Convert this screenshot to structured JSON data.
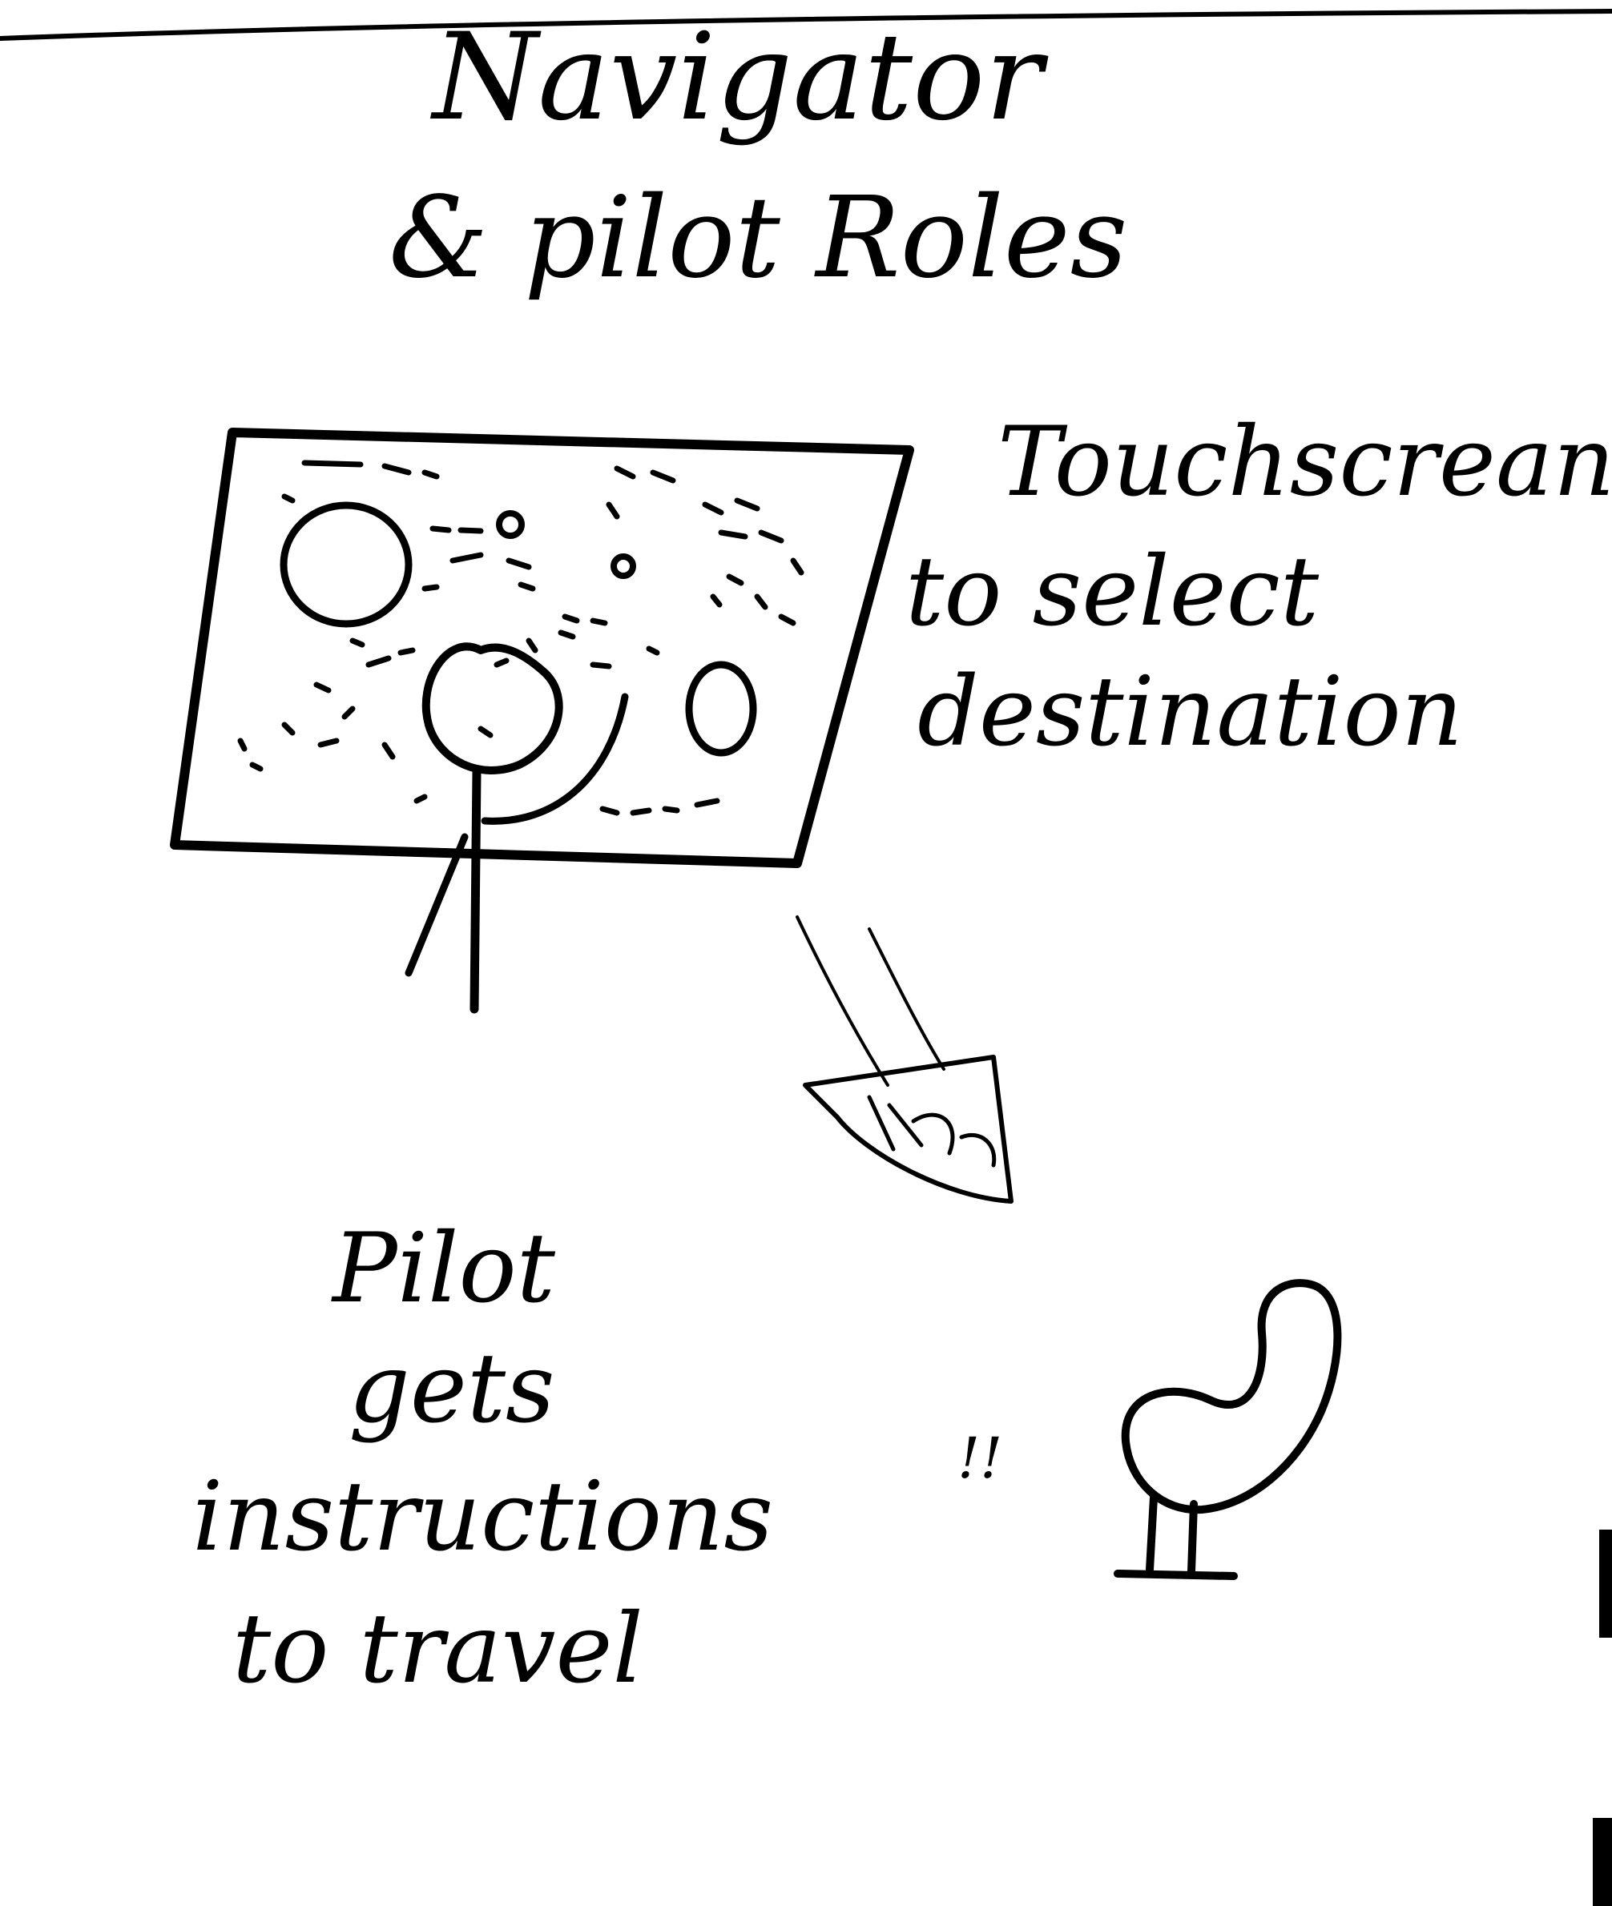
{
  "title": {
    "line1": "Navigator",
    "line2": "& pilot Roles"
  },
  "touchscreen_note": {
    "line1": "Touchscrean",
    "line2": "to select",
    "line3": "destination"
  },
  "pilot_note": {
    "line1": "Pilot",
    "line2": "gets",
    "line3": "instructions",
    "line4": "to travel"
  },
  "arrow": {
    "direction": "down-right"
  },
  "pilot_figure_mark": "!!",
  "colors": {
    "ink": "#000000",
    "paper": "#ffffff"
  }
}
